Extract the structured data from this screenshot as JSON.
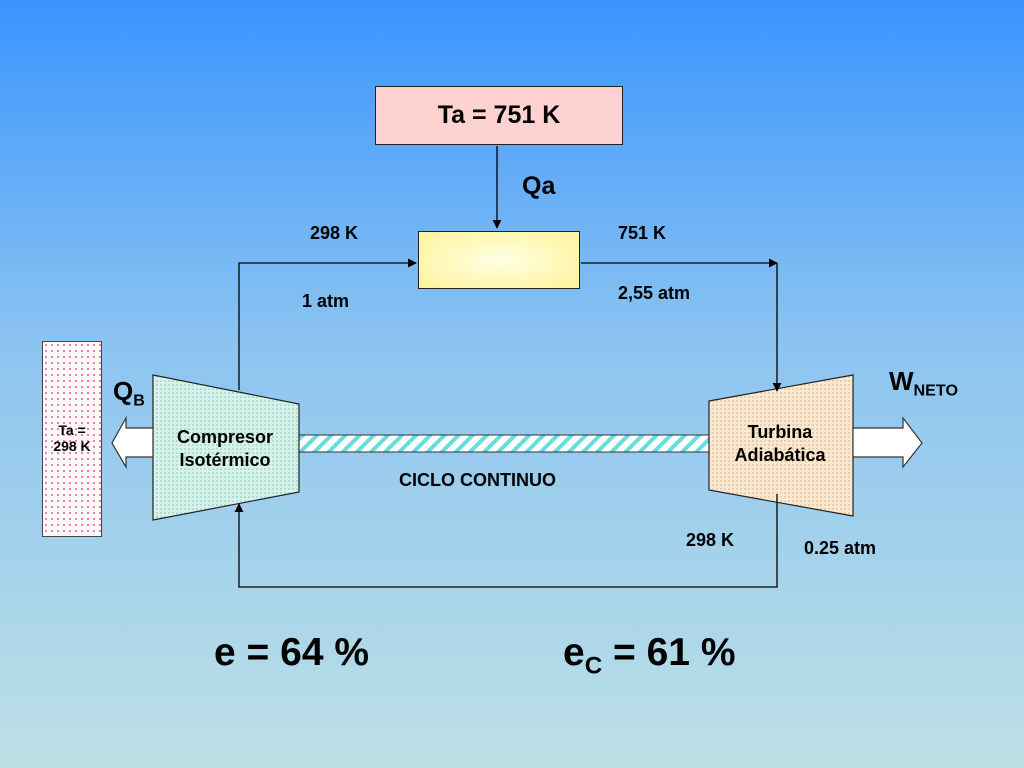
{
  "hot_reservoir": {
    "label": "Ta = 751  K"
  },
  "heat_in": {
    "label": "Qa"
  },
  "state_2": {
    "temperature": "298 K",
    "pressure": "1  atm"
  },
  "state_3": {
    "temperature": "751 K",
    "pressure": "2,55  atm"
  },
  "state_4": {
    "temperature": "298 K",
    "pressure": "0.25  atm"
  },
  "cold_reservoir": {
    "line1": "Ta =",
    "line2": "298  K"
  },
  "heat_out": {
    "main": "Q",
    "sub": "B"
  },
  "work_out": {
    "main": "W",
    "sub": "NETO"
  },
  "compressor": {
    "line1": "Compresor",
    "line2": "Isotérmico"
  },
  "turbine": {
    "line1": "Turbina",
    "line2": "Adiabática"
  },
  "shaft": {
    "label": "CICLO CONTINUO"
  },
  "efficiency": {
    "text": "e = 64 %"
  },
  "carnot_efficiency": {
    "main": "e",
    "sub": "C",
    "rest": " = 61 %"
  },
  "colors": {
    "hot_box": "#ffd2d2",
    "heater": "#fff7b0",
    "compressor": "#d9f3ec",
    "turbine": "#f8e6cf",
    "cold_reservoir_dots": "#e56aa6",
    "shaft_stripes": "#66dede"
  }
}
